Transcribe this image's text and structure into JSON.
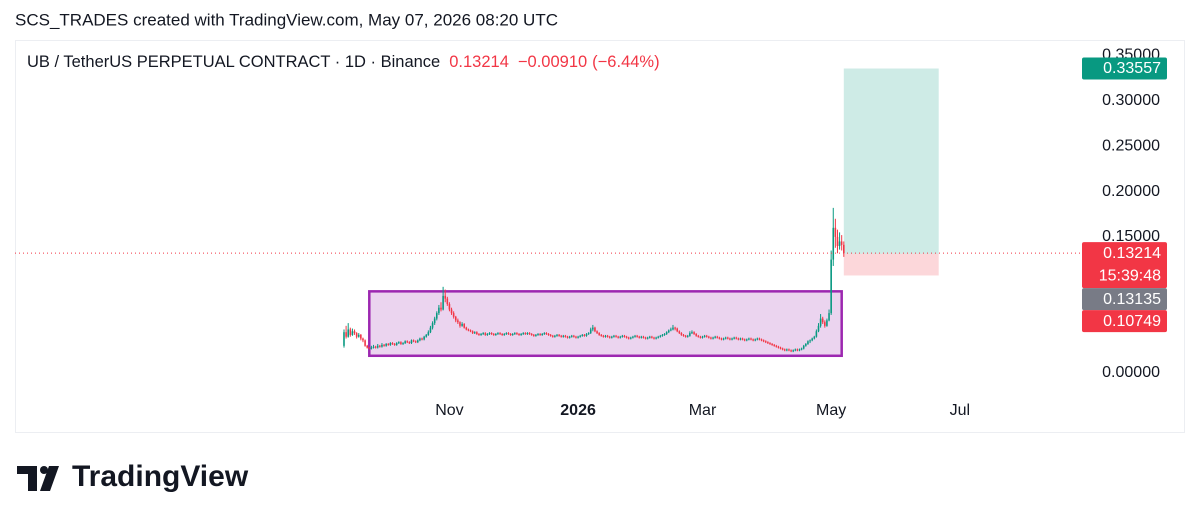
{
  "header": "SCS_TRADES created with TradingView.com, May 07, 2026 08:20 UTC",
  "footer": "TradingView",
  "chart_data": {
    "type": "candlestick",
    "title": "UB / TetherUS PERPETUAL CONTRACT · 1D · Binance",
    "change": {
      "value": -0.0091,
      "label": "−0.00910"
    },
    "change_percent": {
      "value": -6.44,
      "label": "(−6.44%)"
    },
    "countdown": "15:39:48",
    "colors": {
      "up": "#089981",
      "down": "#f23645",
      "box": "#9c27b0",
      "target": "#089981",
      "stop": "#f23645",
      "entry": "#787b86"
    },
    "ylim": [
      -0.065,
      0.367
    ],
    "yticks": [
      {
        "value": 0,
        "label": "0.00000"
      },
      {
        "value": 0.15,
        "label": "0.15000"
      },
      {
        "value": 0.2,
        "label": "0.20000"
      },
      {
        "value": 0.25,
        "label": "0.25000"
      },
      {
        "value": 0.3,
        "label": "0.30000"
      },
      {
        "value": 0.35,
        "label": "0.35000"
      }
    ],
    "xlim": [
      -156,
      349
    ],
    "xticks": [
      {
        "value": 50,
        "label": "Nov"
      },
      {
        "value": 111,
        "label": "2026"
      },
      {
        "value": 170,
        "label": "Mar"
      },
      {
        "value": 231,
        "label": "May"
      },
      {
        "value": 292,
        "label": "Jul"
      }
    ],
    "box": {
      "start": 12,
      "end": 236,
      "top": 0.09,
      "bottom": 0.019
    },
    "position": {
      "start": 237,
      "end": 282,
      "entry": 0.13135,
      "target": 0.33557,
      "stop": 0.10749
    },
    "ohlc": [
      [
        0.03,
        0.048,
        0.028,
        0.045
      ],
      [
        0.045,
        0.052,
        0.038,
        0.04
      ],
      [
        0.04,
        0.055,
        0.039,
        0.048
      ],
      [
        0.048,
        0.05,
        0.04,
        0.042
      ],
      [
        0.042,
        0.049,
        0.041,
        0.046
      ],
      [
        0.046,
        0.048,
        0.042,
        0.044
      ],
      [
        0.044,
        0.045,
        0.038,
        0.04
      ],
      [
        0.04,
        0.044,
        0.039,
        0.042
      ],
      [
        0.042,
        0.043,
        0.036,
        0.038
      ],
      [
        0.038,
        0.039,
        0.034,
        0.036
      ],
      [
        0.036,
        0.037,
        0.029,
        0.03
      ],
      [
        0.03,
        0.031,
        0.027,
        0.028
      ],
      [
        0.028,
        0.029,
        0.026,
        0.027
      ],
      [
        0.027,
        0.03,
        0.026,
        0.028
      ],
      [
        0.028,
        0.031,
        0.027,
        0.029
      ],
      [
        0.029,
        0.03,
        0.027,
        0.028
      ],
      [
        0.028,
        0.032,
        0.027,
        0.03
      ],
      [
        0.03,
        0.031,
        0.028,
        0.029
      ],
      [
        0.029,
        0.033,
        0.028,
        0.031
      ],
      [
        0.031,
        0.032,
        0.029,
        0.03
      ],
      [
        0.03,
        0.033,
        0.029,
        0.032
      ],
      [
        0.032,
        0.033,
        0.03,
        0.031
      ],
      [
        0.031,
        0.034,
        0.03,
        0.033
      ],
      [
        0.033,
        0.034,
        0.031,
        0.032
      ],
      [
        0.032,
        0.033,
        0.03,
        0.031
      ],
      [
        0.031,
        0.034,
        0.03,
        0.033
      ],
      [
        0.033,
        0.035,
        0.032,
        0.034
      ],
      [
        0.034,
        0.035,
        0.031,
        0.032
      ],
      [
        0.032,
        0.034,
        0.031,
        0.033
      ],
      [
        0.033,
        0.036,
        0.032,
        0.035
      ],
      [
        0.035,
        0.036,
        0.033,
        0.034
      ],
      [
        0.034,
        0.035,
        0.032,
        0.033
      ],
      [
        0.033,
        0.037,
        0.032,
        0.036
      ],
      [
        0.036,
        0.037,
        0.034,
        0.035
      ],
      [
        0.035,
        0.036,
        0.033,
        0.034
      ],
      [
        0.034,
        0.037,
        0.033,
        0.036
      ],
      [
        0.036,
        0.039,
        0.035,
        0.038
      ],
      [
        0.038,
        0.039,
        0.036,
        0.037
      ],
      [
        0.037,
        0.041,
        0.036,
        0.04
      ],
      [
        0.04,
        0.043,
        0.039,
        0.042
      ],
      [
        0.042,
        0.047,
        0.041,
        0.045
      ],
      [
        0.045,
        0.052,
        0.044,
        0.05
      ],
      [
        0.05,
        0.057,
        0.048,
        0.055
      ],
      [
        0.055,
        0.062,
        0.053,
        0.06
      ],
      [
        0.06,
        0.068,
        0.058,
        0.066
      ],
      [
        0.066,
        0.075,
        0.064,
        0.072
      ],
      [
        0.072,
        0.078,
        0.068,
        0.07
      ],
      [
        0.07,
        0.095,
        0.069,
        0.085
      ],
      [
        0.085,
        0.092,
        0.078,
        0.082
      ],
      [
        0.082,
        0.084,
        0.074,
        0.076
      ],
      [
        0.076,
        0.078,
        0.068,
        0.07
      ],
      [
        0.07,
        0.072,
        0.064,
        0.066
      ],
      [
        0.066,
        0.068,
        0.06,
        0.062
      ],
      [
        0.062,
        0.063,
        0.056,
        0.058
      ],
      [
        0.058,
        0.06,
        0.054,
        0.056
      ],
      [
        0.056,
        0.057,
        0.05,
        0.052
      ],
      [
        0.052,
        0.056,
        0.051,
        0.054
      ],
      [
        0.054,
        0.055,
        0.049,
        0.05
      ],
      [
        0.05,
        0.051,
        0.047,
        0.048
      ],
      [
        0.048,
        0.049,
        0.046,
        0.047
      ],
      [
        0.047,
        0.048,
        0.045,
        0.046
      ],
      [
        0.046,
        0.047,
        0.043,
        0.044
      ],
      [
        0.044,
        0.046,
        0.043,
        0.045
      ],
      [
        0.045,
        0.046,
        0.042,
        0.043
      ],
      [
        0.043,
        0.044,
        0.041,
        0.042
      ],
      [
        0.042,
        0.044,
        0.041,
        0.043
      ],
      [
        0.043,
        0.045,
        0.042,
        0.044
      ],
      [
        0.044,
        0.045,
        0.041,
        0.042
      ],
      [
        0.042,
        0.044,
        0.041,
        0.043
      ],
      [
        0.043,
        0.045,
        0.042,
        0.044
      ],
      [
        0.044,
        0.045,
        0.042,
        0.043
      ],
      [
        0.043,
        0.044,
        0.041,
        0.042
      ],
      [
        0.042,
        0.044,
        0.041,
        0.043
      ],
      [
        0.043,
        0.045,
        0.042,
        0.044
      ],
      [
        0.044,
        0.045,
        0.042,
        0.043
      ],
      [
        0.043,
        0.044,
        0.041,
        0.042
      ],
      [
        0.042,
        0.044,
        0.041,
        0.043
      ],
      [
        0.043,
        0.045,
        0.042,
        0.044
      ],
      [
        0.044,
        0.045,
        0.042,
        0.043
      ],
      [
        0.043,
        0.044,
        0.041,
        0.042
      ],
      [
        0.042,
        0.044,
        0.041,
        0.043
      ],
      [
        0.043,
        0.045,
        0.042,
        0.044
      ],
      [
        0.044,
        0.045,
        0.042,
        0.043
      ],
      [
        0.043,
        0.044,
        0.041,
        0.042
      ],
      [
        0.042,
        0.044,
        0.041,
        0.043
      ],
      [
        0.043,
        0.045,
        0.042,
        0.044
      ],
      [
        0.044,
        0.045,
        0.042,
        0.043
      ],
      [
        0.043,
        0.045,
        0.042,
        0.044
      ],
      [
        0.044,
        0.045,
        0.042,
        0.043
      ],
      [
        0.043,
        0.044,
        0.041,
        0.042
      ],
      [
        0.042,
        0.043,
        0.04,
        0.041
      ],
      [
        0.041,
        0.043,
        0.04,
        0.042
      ],
      [
        0.042,
        0.044,
        0.041,
        0.043
      ],
      [
        0.043,
        0.044,
        0.041,
        0.042
      ],
      [
        0.042,
        0.044,
        0.041,
        0.043
      ],
      [
        0.043,
        0.045,
        0.042,
        0.044
      ],
      [
        0.044,
        0.045,
        0.042,
        0.043
      ],
      [
        0.043,
        0.044,
        0.041,
        0.042
      ],
      [
        0.042,
        0.043,
        0.04,
        0.041
      ],
      [
        0.041,
        0.042,
        0.039,
        0.04
      ],
      [
        0.04,
        0.042,
        0.039,
        0.041
      ],
      [
        0.041,
        0.043,
        0.04,
        0.042
      ],
      [
        0.042,
        0.043,
        0.04,
        0.041
      ],
      [
        0.041,
        0.042,
        0.039,
        0.04
      ],
      [
        0.04,
        0.042,
        0.039,
        0.041
      ],
      [
        0.041,
        0.042,
        0.039,
        0.04
      ],
      [
        0.04,
        0.041,
        0.038,
        0.039
      ],
      [
        0.039,
        0.041,
        0.038,
        0.04
      ],
      [
        0.04,
        0.042,
        0.039,
        0.041
      ],
      [
        0.041,
        0.042,
        0.039,
        0.04
      ],
      [
        0.04,
        0.041,
        0.038,
        0.039
      ],
      [
        0.039,
        0.041,
        0.038,
        0.04
      ],
      [
        0.04,
        0.042,
        0.039,
        0.041
      ],
      [
        0.041,
        0.043,
        0.04,
        0.042
      ],
      [
        0.042,
        0.043,
        0.04,
        0.041
      ],
      [
        0.041,
        0.044,
        0.04,
        0.043
      ],
      [
        0.043,
        0.045,
        0.042,
        0.044
      ],
      [
        0.044,
        0.05,
        0.043,
        0.048
      ],
      [
        0.048,
        0.053,
        0.046,
        0.05
      ],
      [
        0.05,
        0.051,
        0.045,
        0.046
      ],
      [
        0.046,
        0.047,
        0.043,
        0.044
      ],
      [
        0.044,
        0.045,
        0.041,
        0.042
      ],
      [
        0.042,
        0.043,
        0.04,
        0.041
      ],
      [
        0.041,
        0.042,
        0.039,
        0.04
      ],
      [
        0.04,
        0.042,
        0.039,
        0.041
      ],
      [
        0.041,
        0.042,
        0.039,
        0.04
      ],
      [
        0.04,
        0.041,
        0.038,
        0.039
      ],
      [
        0.039,
        0.041,
        0.038,
        0.04
      ],
      [
        0.04,
        0.042,
        0.039,
        0.041
      ],
      [
        0.041,
        0.042,
        0.039,
        0.04
      ],
      [
        0.04,
        0.041,
        0.038,
        0.039
      ],
      [
        0.039,
        0.041,
        0.038,
        0.04
      ],
      [
        0.04,
        0.042,
        0.039,
        0.041
      ],
      [
        0.041,
        0.042,
        0.039,
        0.04
      ],
      [
        0.04,
        0.041,
        0.038,
        0.039
      ],
      [
        0.039,
        0.04,
        0.037,
        0.038
      ],
      [
        0.038,
        0.04,
        0.037,
        0.039
      ],
      [
        0.039,
        0.041,
        0.038,
        0.04
      ],
      [
        0.04,
        0.042,
        0.039,
        0.041
      ],
      [
        0.041,
        0.042,
        0.039,
        0.04
      ],
      [
        0.04,
        0.041,
        0.038,
        0.039
      ],
      [
        0.039,
        0.041,
        0.038,
        0.04
      ],
      [
        0.04,
        0.041,
        0.038,
        0.039
      ],
      [
        0.039,
        0.04,
        0.037,
        0.038
      ],
      [
        0.038,
        0.04,
        0.037,
        0.039
      ],
      [
        0.039,
        0.041,
        0.038,
        0.04
      ],
      [
        0.04,
        0.041,
        0.038,
        0.039
      ],
      [
        0.039,
        0.04,
        0.037,
        0.038
      ],
      [
        0.038,
        0.04,
        0.037,
        0.039
      ],
      [
        0.039,
        0.041,
        0.038,
        0.04
      ],
      [
        0.04,
        0.042,
        0.039,
        0.041
      ],
      [
        0.041,
        0.043,
        0.04,
        0.042
      ],
      [
        0.042,
        0.044,
        0.041,
        0.043
      ],
      [
        0.043,
        0.046,
        0.042,
        0.045
      ],
      [
        0.045,
        0.048,
        0.044,
        0.047
      ],
      [
        0.047,
        0.05,
        0.046,
        0.048
      ],
      [
        0.048,
        0.053,
        0.047,
        0.05
      ],
      [
        0.05,
        0.051,
        0.047,
        0.049
      ],
      [
        0.049,
        0.05,
        0.045,
        0.046
      ],
      [
        0.046,
        0.047,
        0.043,
        0.044
      ],
      [
        0.044,
        0.045,
        0.041,
        0.042
      ],
      [
        0.042,
        0.043,
        0.04,
        0.041
      ],
      [
        0.041,
        0.042,
        0.039,
        0.04
      ],
      [
        0.04,
        0.042,
        0.039,
        0.041
      ],
      [
        0.041,
        0.046,
        0.04,
        0.044
      ],
      [
        0.044,
        0.047,
        0.043,
        0.045
      ],
      [
        0.045,
        0.046,
        0.042,
        0.043
      ],
      [
        0.043,
        0.044,
        0.04,
        0.041
      ],
      [
        0.041,
        0.042,
        0.039,
        0.04
      ],
      [
        0.04,
        0.041,
        0.038,
        0.039
      ],
      [
        0.039,
        0.041,
        0.038,
        0.04
      ],
      [
        0.04,
        0.042,
        0.039,
        0.041
      ],
      [
        0.041,
        0.042,
        0.039,
        0.04
      ],
      [
        0.04,
        0.041,
        0.038,
        0.039
      ],
      [
        0.039,
        0.04,
        0.037,
        0.038
      ],
      [
        0.038,
        0.04,
        0.037,
        0.039
      ],
      [
        0.039,
        0.041,
        0.038,
        0.04
      ],
      [
        0.04,
        0.041,
        0.038,
        0.039
      ],
      [
        0.039,
        0.04,
        0.037,
        0.038
      ],
      [
        0.038,
        0.039,
        0.036,
        0.037
      ],
      [
        0.037,
        0.039,
        0.036,
        0.038
      ],
      [
        0.038,
        0.04,
        0.037,
        0.039
      ],
      [
        0.039,
        0.04,
        0.037,
        0.038
      ],
      [
        0.038,
        0.039,
        0.036,
        0.037
      ],
      [
        0.037,
        0.039,
        0.036,
        0.038
      ],
      [
        0.038,
        0.04,
        0.037,
        0.039
      ],
      [
        0.039,
        0.04,
        0.037,
        0.038
      ],
      [
        0.038,
        0.039,
        0.036,
        0.037
      ],
      [
        0.037,
        0.039,
        0.036,
        0.038
      ],
      [
        0.038,
        0.039,
        0.036,
        0.037
      ],
      [
        0.037,
        0.038,
        0.035,
        0.036
      ],
      [
        0.036,
        0.038,
        0.035,
        0.037
      ],
      [
        0.037,
        0.039,
        0.036,
        0.038
      ],
      [
        0.038,
        0.039,
        0.036,
        0.037
      ],
      [
        0.037,
        0.038,
        0.035,
        0.036
      ],
      [
        0.036,
        0.038,
        0.035,
        0.037
      ],
      [
        0.037,
        0.039,
        0.036,
        0.038
      ],
      [
        0.038,
        0.039,
        0.036,
        0.037
      ],
      [
        0.037,
        0.038,
        0.035,
        0.036
      ],
      [
        0.036,
        0.037,
        0.034,
        0.035
      ],
      [
        0.035,
        0.036,
        0.033,
        0.034
      ],
      [
        0.034,
        0.035,
        0.032,
        0.033
      ],
      [
        0.033,
        0.034,
        0.031,
        0.032
      ],
      [
        0.032,
        0.033,
        0.03,
        0.031
      ],
      [
        0.031,
        0.032,
        0.029,
        0.03
      ],
      [
        0.03,
        0.031,
        0.028,
        0.029
      ],
      [
        0.029,
        0.03,
        0.027,
        0.028
      ],
      [
        0.028,
        0.029,
        0.026,
        0.027
      ],
      [
        0.027,
        0.028,
        0.025,
        0.026
      ],
      [
        0.026,
        0.027,
        0.024,
        0.025
      ],
      [
        0.025,
        0.027,
        0.024,
        0.026
      ],
      [
        0.026,
        0.027,
        0.024,
        0.025
      ],
      [
        0.025,
        0.026,
        0.023,
        0.024
      ],
      [
        0.024,
        0.026,
        0.023,
        0.025
      ],
      [
        0.025,
        0.027,
        0.024,
        0.026
      ],
      [
        0.026,
        0.027,
        0.024,
        0.025
      ],
      [
        0.025,
        0.027,
        0.024,
        0.026
      ],
      [
        0.026,
        0.028,
        0.025,
        0.027
      ],
      [
        0.027,
        0.031,
        0.026,
        0.03
      ],
      [
        0.03,
        0.033,
        0.029,
        0.032
      ],
      [
        0.032,
        0.036,
        0.031,
        0.035
      ],
      [
        0.035,
        0.037,
        0.033,
        0.036
      ],
      [
        0.036,
        0.039,
        0.035,
        0.038
      ],
      [
        0.038,
        0.041,
        0.037,
        0.04
      ],
      [
        0.04,
        0.048,
        0.039,
        0.046
      ],
      [
        0.046,
        0.055,
        0.045,
        0.052
      ],
      [
        0.052,
        0.065,
        0.05,
        0.06
      ],
      [
        0.06,
        0.062,
        0.054,
        0.056
      ],
      [
        0.056,
        0.058,
        0.05,
        0.052
      ],
      [
        0.052,
        0.06,
        0.051,
        0.058
      ],
      [
        0.058,
        0.07,
        0.057,
        0.066
      ],
      [
        0.066,
        0.135,
        0.064,
        0.125
      ],
      [
        0.125,
        0.182,
        0.118,
        0.16
      ],
      [
        0.16,
        0.17,
        0.138,
        0.15
      ],
      [
        0.15,
        0.158,
        0.132,
        0.14
      ],
      [
        0.14,
        0.155,
        0.136,
        0.145
      ],
      [
        0.145,
        0.152,
        0.135,
        0.14124
      ],
      [
        0.14124,
        0.145,
        0.128,
        0.13214
      ]
    ]
  }
}
